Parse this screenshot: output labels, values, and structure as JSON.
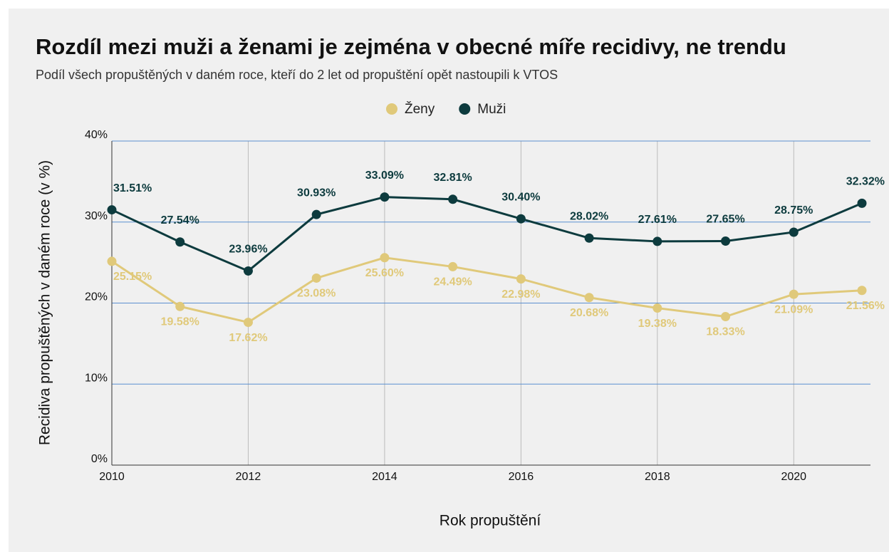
{
  "chart_data": {
    "type": "line",
    "title": "Rozdíl mezi muži a ženami je zejména v obecné míře recidivy, ne trendu",
    "subtitle": "Podíl všech propuštěných v daném roce, kteří do 2 let od propuštění opět nastoupili k VTOS",
    "x_label": "Rok propuštění",
    "y_label": "Recidiva propuštěných v daném roce (v %)",
    "x": [
      2010,
      2011,
      2012,
      2013,
      2014,
      2015,
      2016,
      2017,
      2018,
      2019,
      2020,
      2021
    ],
    "xlim": [
      2010,
      2021
    ],
    "xticks": [
      2010,
      2012,
      2014,
      2016,
      2018,
      2020
    ],
    "ylim": [
      0,
      40
    ],
    "yticks": [
      {
        "value": 0,
        "label": "0%"
      },
      {
        "value": 10,
        "label": "10%"
      },
      {
        "value": 20,
        "label": "20%"
      },
      {
        "value": 30,
        "label": "30%"
      },
      {
        "value": 40,
        "label": "40%"
      }
    ],
    "grid": true,
    "legend": "top",
    "series": [
      {
        "name": "Ženy",
        "color": "#e0c97a",
        "values": [
          25.15,
          19.58,
          17.62,
          23.08,
          25.6,
          24.49,
          22.98,
          20.68,
          19.38,
          18.33,
          21.09,
          21.56
        ],
        "value_labels": [
          "25.15%",
          "19.58%",
          "17.62%",
          "23.08%",
          "25.60%",
          "24.49%",
          "22.98%",
          "20.68%",
          "19.38%",
          "18.33%",
          "21.09%",
          "21.56%"
        ]
      },
      {
        "name": "Muži",
        "color": "#0d3b3e",
        "values": [
          31.51,
          27.54,
          23.96,
          30.93,
          33.09,
          32.81,
          30.4,
          28.02,
          27.61,
          27.65,
          28.75,
          32.32
        ],
        "value_labels": [
          "31.51%",
          "27.54%",
          "23.96%",
          "30.93%",
          "33.09%",
          "32.81%",
          "30.40%",
          "28.02%",
          "27.61%",
          "27.65%",
          "28.75%",
          "32.32%"
        ]
      }
    ]
  }
}
